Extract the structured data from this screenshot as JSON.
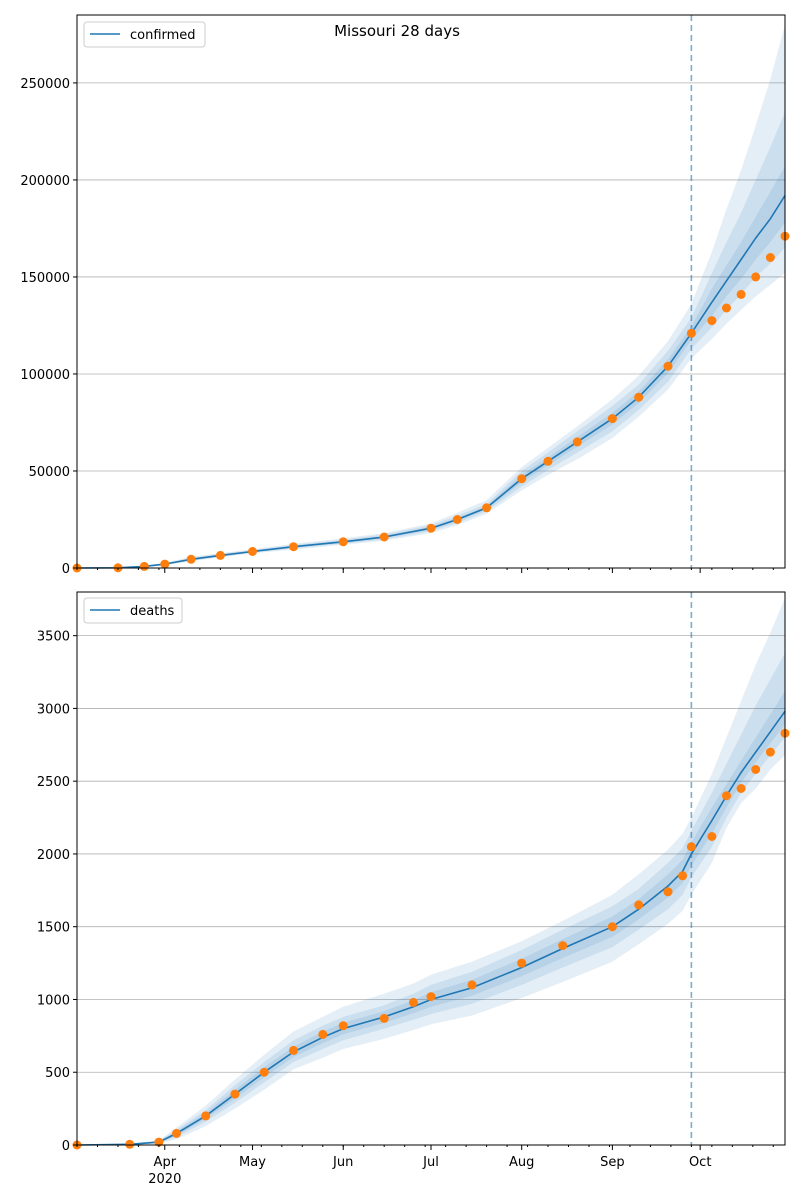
{
  "figure": {
    "title": "Missouri 28 days"
  },
  "x_axis": {
    "month_labels": [
      "Apr",
      "May",
      "Jun",
      "Jul",
      "Aug",
      "Sep",
      "Oct"
    ],
    "year_label": "2020"
  },
  "colors": {
    "line": "#1f77b4",
    "points": "#ff7f0e",
    "band": "#1f77b4",
    "vline": "#1f77b4",
    "grid": "#b0b0b0"
  },
  "chart_data": [
    {
      "type": "line",
      "title": "",
      "legend": {
        "label": "confirmed",
        "loc": "upper left"
      },
      "ylim": [
        0,
        285000
      ],
      "yticks": [
        0,
        50000,
        100000,
        150000,
        200000,
        250000
      ],
      "ytick_labels": [
        "0",
        "50000",
        "100000",
        "150000",
        "200000",
        "250000"
      ],
      "xlim": [
        "2020-03-02",
        "2020-10-30"
      ],
      "forecast_start": "2020-09-28",
      "grid": "y",
      "observed": {
        "x": [
          "2020-03-02",
          "2020-03-16",
          "2020-03-25",
          "2020-04-01",
          "2020-04-10",
          "2020-04-20",
          "2020-05-01",
          "2020-05-15",
          "2020-06-01",
          "2020-06-15",
          "2020-07-01",
          "2020-07-10",
          "2020-07-20",
          "2020-08-01",
          "2020-08-10",
          "2020-08-20",
          "2020-09-01",
          "2020-09-10",
          "2020-09-20",
          "2020-09-28",
          "2020-10-05",
          "2020-10-10",
          "2020-10-15",
          "2020-10-20",
          "2020-10-25",
          "2020-10-30"
        ],
        "y": [
          0,
          100,
          800,
          2000,
          4500,
          6500,
          8500,
          11000,
          13500,
          16000,
          20500,
          25000,
          31000,
          46000,
          55000,
          65000,
          77000,
          88000,
          104000,
          121000,
          127500,
          134000,
          141000,
          150000,
          160000,
          171000
        ]
      },
      "forecast": {
        "x": [
          "2020-03-02",
          "2020-03-16",
          "2020-03-25",
          "2020-04-01",
          "2020-04-10",
          "2020-04-20",
          "2020-05-01",
          "2020-05-15",
          "2020-06-01",
          "2020-06-15",
          "2020-07-01",
          "2020-07-10",
          "2020-07-20",
          "2020-08-01",
          "2020-08-10",
          "2020-08-20",
          "2020-09-01",
          "2020-09-10",
          "2020-09-20",
          "2020-09-28",
          "2020-10-05",
          "2020-10-10",
          "2020-10-15",
          "2020-10-20",
          "2020-10-25",
          "2020-10-30"
        ],
        "y": [
          0,
          100,
          800,
          2000,
          4500,
          6500,
          8500,
          11000,
          13500,
          16000,
          20500,
          25000,
          31000,
          46000,
          55000,
          65000,
          77000,
          88000,
          104000,
          121000,
          137000,
          148000,
          159000,
          170000,
          180000,
          192000
        ],
        "bands": [
          {
            "lower": [
              0,
              0,
              400,
              1400,
              3500,
              5500,
              7500,
              9500,
              12000,
              14000,
              18000,
              22000,
              28000,
              40000,
              48000,
              56000,
              67000,
              78000,
              92000,
              108000,
              118000,
              126000,
              133000,
              140000,
              146000,
              152000
            ],
            "upper": [
              0,
              200,
              1300,
              2700,
              5700,
              7700,
              9700,
              12500,
              15300,
              18000,
              23000,
              28500,
              35000,
              52000,
              62000,
              73000,
              87000,
              99000,
              117000,
              136000,
              163000,
              185000,
              205000,
              228000,
              252000,
              280000
            ]
          },
          {
            "lower": [
              0,
              0,
              500,
              1600,
              3800,
              5800,
              7900,
              10100,
              12500,
              14700,
              19000,
              23200,
              29200,
              42000,
              50500,
              59500,
              70500,
              81500,
              96000,
              113000,
              124000,
              133000,
              141000,
              150000,
              157000,
              165000
            ],
            "upper": [
              0,
              150,
              1100,
              2400,
              5300,
              7300,
              9200,
              11900,
              14600,
              17300,
              22000,
              27000,
              33000,
              50000,
              59500,
              70500,
              83500,
              94500,
              112000,
              129000,
              152000,
              168000,
              183000,
              200000,
              217000,
              235000
            ]
          },
          {
            "lower": [
              0,
              30,
              600,
              1800,
              4100,
              6100,
              8200,
              10600,
              13000,
              15400,
              19800,
              24200,
              30200,
              44000,
              53000,
              62500,
              74000,
              85000,
              100500,
              117500,
              130000,
              140000,
              149000,
              159000,
              168000,
              178000
            ],
            "upper": [
              0,
              120,
              1000,
              2200,
              4900,
              6900,
              8800,
              11400,
              14000,
              16600,
              21200,
              25800,
              31800,
              48000,
              57000,
              67500,
              80000,
              91000,
              107500,
              124500,
              144000,
              156000,
              168000,
              181000,
              194000,
              207000
            ]
          }
        ]
      }
    },
    {
      "type": "line",
      "title": "",
      "legend": {
        "label": "deaths",
        "loc": "upper left"
      },
      "ylim": [
        0,
        3800
      ],
      "yticks": [
        0,
        500,
        1000,
        1500,
        2000,
        2500,
        3000,
        3500
      ],
      "ytick_labels": [
        "0",
        "500",
        "1000",
        "1500",
        "2000",
        "2500",
        "3000",
        "3500"
      ],
      "xlim": [
        "2020-03-02",
        "2020-10-30"
      ],
      "forecast_start": "2020-09-28",
      "grid": "y",
      "observed": {
        "x": [
          "2020-03-02",
          "2020-03-20",
          "2020-03-30",
          "2020-04-05",
          "2020-04-15",
          "2020-04-25",
          "2020-05-05",
          "2020-05-15",
          "2020-05-25",
          "2020-06-01",
          "2020-06-15",
          "2020-06-25",
          "2020-07-01",
          "2020-07-15",
          "2020-08-01",
          "2020-08-15",
          "2020-09-01",
          "2020-09-10",
          "2020-09-20",
          "2020-09-25",
          "2020-09-28",
          "2020-10-05",
          "2020-10-10",
          "2020-10-15",
          "2020-10-20",
          "2020-10-25",
          "2020-10-30"
        ],
        "y": [
          0,
          5,
          20,
          80,
          200,
          350,
          500,
          650,
          760,
          820,
          870,
          980,
          1020,
          1100,
          1250,
          1370,
          1500,
          1650,
          1740,
          1850,
          2050,
          2120,
          2400,
          2450,
          2580,
          2700,
          2830
        ]
      },
      "forecast": {
        "x": [
          "2020-03-02",
          "2020-03-20",
          "2020-03-30",
          "2020-04-05",
          "2020-04-15",
          "2020-04-25",
          "2020-05-05",
          "2020-05-15",
          "2020-05-25",
          "2020-06-01",
          "2020-06-15",
          "2020-06-25",
          "2020-07-01",
          "2020-07-15",
          "2020-08-01",
          "2020-08-15",
          "2020-09-01",
          "2020-09-10",
          "2020-09-20",
          "2020-09-25",
          "2020-09-28",
          "2020-10-05",
          "2020-10-10",
          "2020-10-15",
          "2020-10-20",
          "2020-10-25",
          "2020-10-30"
        ],
        "y": [
          0,
          5,
          20,
          80,
          200,
          350,
          500,
          640,
          740,
          800,
          880,
          950,
          1000,
          1080,
          1220,
          1350,
          1500,
          1620,
          1780,
          1880,
          2000,
          2230,
          2400,
          2560,
          2700,
          2840,
          2980
        ],
        "bands": [
          {
            "lower": [
              0,
              0,
              10,
              40,
              130,
              250,
              380,
              520,
              600,
              660,
              730,
              790,
              830,
              890,
              1010,
              1120,
              1260,
              1380,
              1520,
              1610,
              1720,
              1940,
              2180,
              2350,
              2450,
              2580,
              2680
            ],
            "upper": [
              0,
              10,
              30,
              120,
              270,
              450,
              620,
              780,
              880,
              950,
              1040,
              1110,
              1170,
              1260,
              1400,
              1540,
              1720,
              1860,
              2030,
              2140,
              2250,
              2550,
              2800,
              3050,
              3300,
              3520,
              3760
            ]
          },
          {
            "lower": [
              0,
              2,
              14,
              55,
              160,
              290,
              430,
              570,
              660,
              720,
              800,
              860,
              900,
              970,
              1100,
              1220,
              1360,
              1480,
              1620,
              1720,
              1840,
              2050,
              2250,
              2420,
              2550,
              2680,
              2800
            ],
            "upper": [
              0,
              8,
              26,
              105,
              240,
              410,
              570,
              720,
              820,
              880,
              960,
              1040,
              1100,
              1190,
              1340,
              1480,
              1640,
              1760,
              1940,
              2040,
              2160,
              2420,
              2620,
              2820,
              3020,
              3200,
              3380
            ]
          },
          {
            "lower": [
              0,
              3,
              17,
              65,
              180,
              320,
              465,
              605,
              700,
              760,
              840,
              905,
              950,
              1025,
              1160,
              1285,
              1430,
              1550,
              1700,
              1800,
              1920,
              2140,
              2320,
              2490,
              2630,
              2760,
              2890
            ],
            "upper": [
              0,
              7,
              23,
              95,
              220,
              380,
              535,
              675,
              780,
              840,
              920,
              995,
              1050,
              1135,
              1280,
              1415,
              1570,
              1690,
              1860,
              1960,
              2080,
              2320,
              2480,
              2640,
              2800,
              2960,
              3120
            ]
          }
        ]
      }
    }
  ]
}
